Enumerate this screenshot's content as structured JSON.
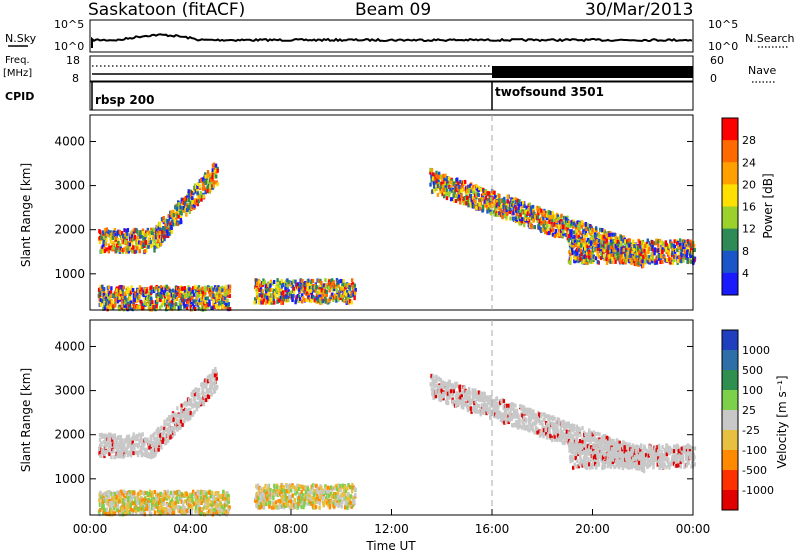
{
  "header": {
    "station": "Saskatoon (fitACF)",
    "beam": "Beam 09",
    "date": "30/Mar/2013"
  },
  "strip_panels": {
    "nsky_label": "N.Sky",
    "nsky_ticks": [
      "10^5",
      "10^0"
    ],
    "nsearch_label": "N.Search",
    "nsearch_ticks": [
      "10^5",
      "10^0"
    ],
    "freq_label": "Freq.",
    "freq_unit": "[MHz]",
    "freq_ticks": [
      "18",
      "8"
    ],
    "nave_label": "Nave",
    "nave_ticks": [
      "60",
      "0"
    ],
    "cpid_label": "CPID",
    "cpid_segments": [
      {
        "name": "rbsp 200",
        "start_hour": 0,
        "end_hour": 16
      },
      {
        "name": "twofsound 3501",
        "start_hour": 16,
        "end_hour": 24
      }
    ]
  },
  "chart_data": [
    {
      "type": "heatmap",
      "name": "power",
      "ylabel": "Slant Range [km]",
      "yticks": [
        1000,
        2000,
        3000,
        4000
      ],
      "ylim": [
        180,
        4600
      ],
      "xlim": [
        0,
        24
      ],
      "colorbar": {
        "label": "Power [dB]",
        "ticks": [
          "28",
          "24",
          "20",
          "16",
          "12",
          "8",
          "4"
        ],
        "colors": [
          "#ff0000",
          "#ff6a00",
          "#ffa000",
          "#ffe000",
          "#9ad12a",
          "#2e8b57",
          "#1c55c8",
          "#1a1aff"
        ]
      },
      "features": [
        {
          "desc": "early band",
          "start_hour": 0.3,
          "end_hour": 2.5,
          "range_km": 1750
        },
        {
          "desc": "rising arc",
          "start_hour": 2.5,
          "end_hour": 5.0,
          "range_km_start": 1800,
          "range_km_end": 3300
        },
        {
          "desc": "near range echoes",
          "start_hour": 0.3,
          "end_hour": 5.5,
          "range_km": 450
        },
        {
          "desc": "mid-day band",
          "start_hour": 6.5,
          "end_hour": 10.5,
          "range_km": 600
        },
        {
          "desc": "evening arc",
          "start_hour": 13.5,
          "end_hour": 22.0,
          "range_km_start": 3100,
          "range_km_end": 1400
        },
        {
          "desc": "late echoes",
          "start_hour": 19.0,
          "end_hour": 24.0,
          "range_km": 1500
        }
      ]
    },
    {
      "type": "heatmap",
      "name": "velocity",
      "ylabel": "Slant Range [km]",
      "yticks": [
        1000,
        2000,
        3000,
        4000
      ],
      "ylim": [
        180,
        4600
      ],
      "xlim": [
        0,
        24
      ],
      "xticks": [
        "00:00",
        "04:00",
        "08:00",
        "12:00",
        "16:00",
        "20:00",
        "00:00"
      ],
      "xlabel": "Time UT",
      "colorbar": {
        "label": "Velocity [m s⁻¹]",
        "ticks": [
          "1000",
          "500",
          "100",
          "25",
          "-25",
          "-100",
          "-500",
          "-1000"
        ],
        "colors": [
          "#1f3fbf",
          "#2e6fa8",
          "#2f8f4f",
          "#7cd04a",
          "#c8c8c8",
          "#e8c040",
          "#ff8a00",
          "#ff3000",
          "#e00000"
        ]
      }
    }
  ],
  "colors": {
    "grey_band": "#c8c8c8",
    "frame": "#000000"
  }
}
